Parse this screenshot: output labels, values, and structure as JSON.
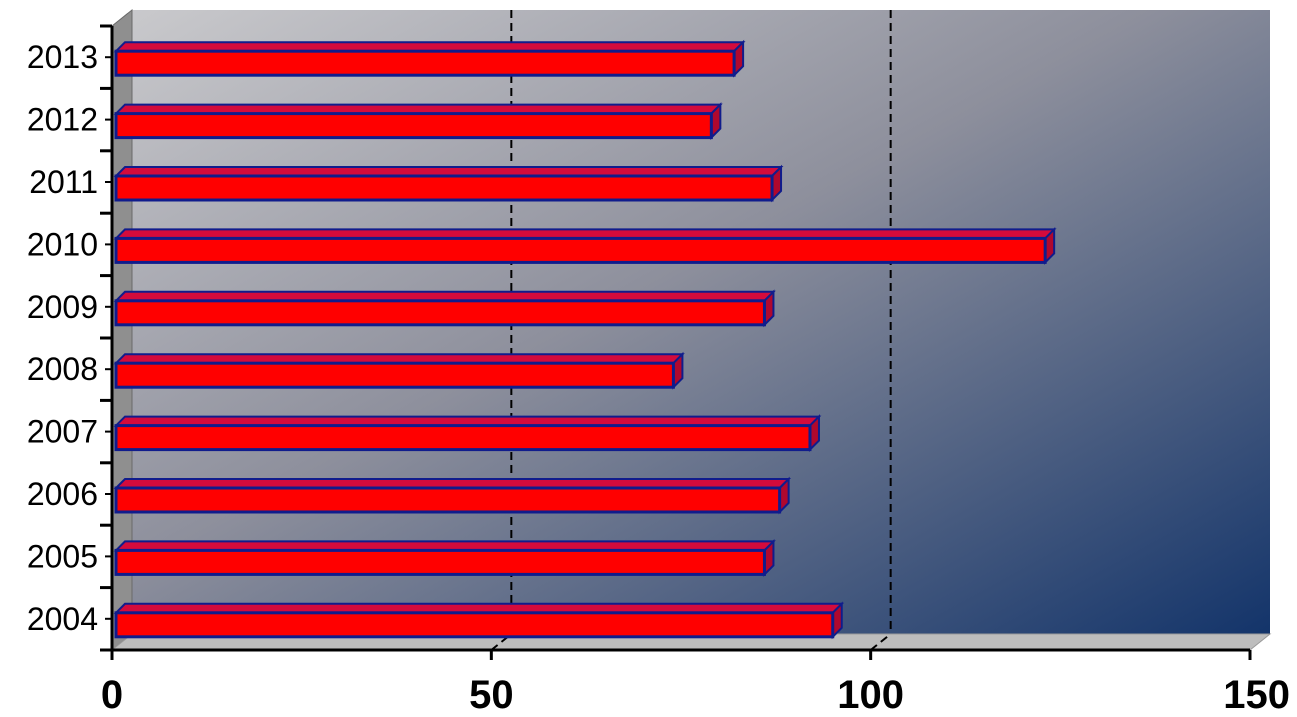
{
  "chart_data": {
    "type": "bar",
    "orientation": "horizontal",
    "categories": [
      "2004",
      "2005",
      "2006",
      "2007",
      "2008",
      "2009",
      "2010",
      "2011",
      "2012",
      "2013"
    ],
    "values": [
      95,
      86,
      88,
      92,
      74,
      86,
      123,
      87,
      79,
      82
    ],
    "title": "",
    "xlabel": "",
    "ylabel": "",
    "xlim": [
      0,
      150
    ],
    "xticks": [
      "0",
      "50",
      "100",
      "150"
    ],
    "grid": "vertical dashed",
    "legend": "none",
    "style": "3d"
  },
  "colors": {
    "bar_fill": "#ff0000",
    "bar_top": "#d40b3c",
    "bar_side": "#b0082e",
    "bar_outline": "#101c8c",
    "plot_bg_light": "#c9c9cc",
    "plot_bg_dark": "#13346a",
    "wall_side": "#8f8f8f",
    "floor": "#bdbdbd"
  }
}
